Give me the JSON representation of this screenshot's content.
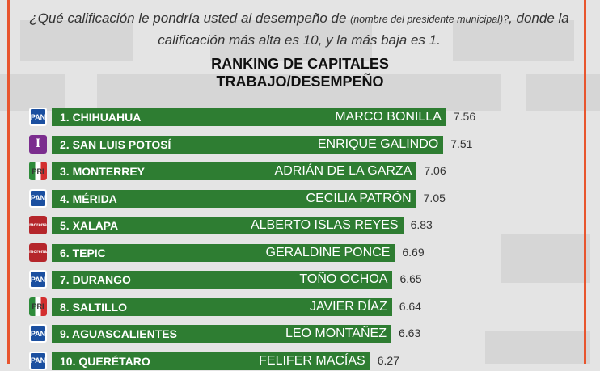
{
  "question": {
    "part1": "¿Qué calificación le pondría usted al desempeño de ",
    "note": "(nombre del presidente municipal)?",
    "part2": ", donde la calificación más alta es 10, y la más baja es 1."
  },
  "chart_data": {
    "type": "bar",
    "orientation": "horizontal",
    "title": "RANKING DE CAPITALES",
    "subtitle": "TRABAJO/DESEMPEÑO",
    "colors": {
      "bar": "#2e7d32",
      "frame": "#e8552e"
    },
    "categories": [
      "1. CHIHUAHUA",
      "2. SAN LUIS POTOSÍ",
      "3. MONTERREY",
      "4. MÉRIDA",
      "5. XALAPA",
      "6. TEPIC",
      "7. DURANGO",
      "8. SALTILLO",
      "9. AGUASCALIENTES",
      "10. QUERÉTARO"
    ],
    "mayors": [
      "MARCO BONILLA",
      "ENRIQUE GALINDO",
      "ADRIÁN DE LA GARZA",
      "CECILIA PATRÓN",
      "ALBERTO ISLAS REYES",
      "GERALDINE PONCE",
      "TOÑO OCHOA",
      "JAVIER DÍAZ",
      "LEO MONTAÑEZ",
      "FELIFER MACÍAS"
    ],
    "parties": [
      "PAN",
      "PI",
      "PRI",
      "PAN",
      "morena",
      "morena",
      "PAN",
      "PRI",
      "PAN",
      "PAN"
    ],
    "values": [
      7.56,
      7.51,
      7.06,
      7.05,
      6.83,
      6.69,
      6.65,
      6.64,
      6.63,
      6.27
    ],
    "labels": [
      "7.56",
      "7.51",
      "7.06",
      "7.05",
      "6.83",
      "6.69",
      "6.65",
      "6.64",
      "6.63",
      "6.27"
    ]
  }
}
